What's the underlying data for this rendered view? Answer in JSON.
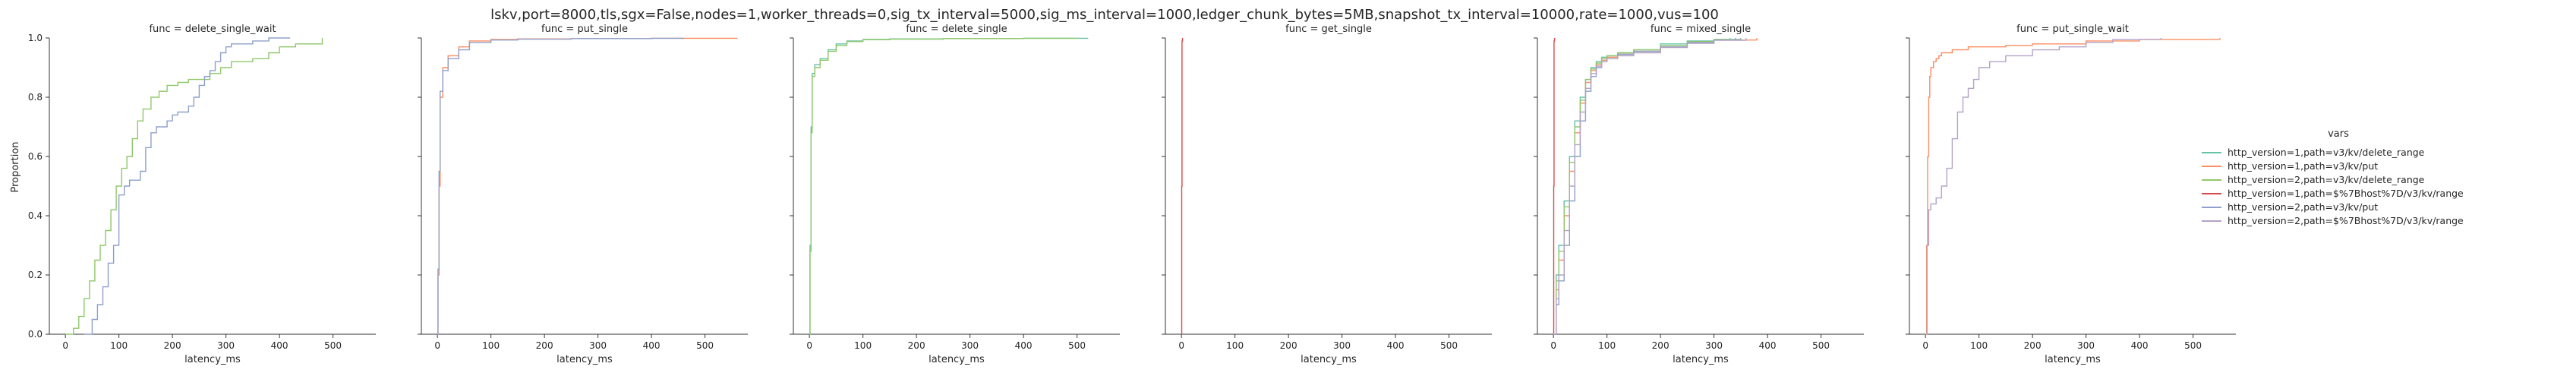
{
  "chart_data": {
    "type": "line",
    "title": "lskv,port=8000,tls,sgx=False,nodes=1,worker_threads=0,sig_tx_interval=5000,sig_ms_interval=1000,ledger_chunk_bytes=5MB,snapshot_tx_interval=10000,rate=1000,vus=100",
    "ylabel": "Proportion",
    "xlabel": "latency_ms",
    "ylim": [
      0,
      1.0
    ],
    "xlim": [
      -30,
      580
    ],
    "y_ticks": [
      "0.0",
      "0.2",
      "0.4",
      "0.6",
      "0.8",
      "1.0"
    ],
    "x_ticks": [
      "0",
      "100",
      "200",
      "300",
      "400",
      "500"
    ],
    "grid": false,
    "legend": {
      "title": "vars",
      "placement": "right",
      "entries": [
        {
          "label": "http_version=1,path=v3/kv/delete_range",
          "color": "#66c2a5"
        },
        {
          "label": "http_version=1,path=v3/kv/put",
          "color": "#fc8d62"
        },
        {
          "label": "http_version=2,path=v3/kv/delete_range",
          "color": "#8fc86a"
        },
        {
          "label": "http_version=1,path=$%7Bhost%7D/v3/kv/range",
          "color": "#d84b4b"
        },
        {
          "label": "http_version=2,path=v3/kv/put",
          "color": "#8da0cb"
        },
        {
          "label": "http_version=2,path=$%7Bhost%7D/v3/kv/range",
          "color": "#b3a3c7"
        }
      ]
    },
    "panels": [
      {
        "title": "func = delete_single_wait",
        "series": [
          {
            "color": "#8fc86a",
            "x": [
              0,
              15,
              25,
              35,
              45,
              55,
              65,
              75,
              85,
              95,
              105,
              115,
              125,
              135,
              145,
              160,
              175,
              190,
              210,
              230,
              250,
              270,
              290,
              310,
              330,
              350,
              380,
              400,
              430,
              480
            ],
            "y": [
              0,
              0.02,
              0.06,
              0.12,
              0.18,
              0.25,
              0.3,
              0.35,
              0.42,
              0.5,
              0.56,
              0.6,
              0.66,
              0.72,
              0.76,
              0.8,
              0.82,
              0.84,
              0.85,
              0.86,
              0.86,
              0.88,
              0.9,
              0.92,
              0.92,
              0.93,
              0.95,
              0.97,
              0.98,
              1.0
            ]
          },
          {
            "color": "#8da0cb",
            "x": [
              35,
              50,
              60,
              70,
              80,
              90,
              100,
              110,
              120,
              140,
              150,
              160,
              170,
              190,
              200,
              210,
              230,
              240,
              250,
              260,
              270,
              280,
              290,
              300,
              310,
              330,
              350,
              380,
              400,
              420
            ],
            "y": [
              0,
              0.05,
              0.1,
              0.16,
              0.24,
              0.3,
              0.47,
              0.5,
              0.52,
              0.55,
              0.63,
              0.68,
              0.7,
              0.72,
              0.74,
              0.75,
              0.77,
              0.8,
              0.84,
              0.87,
              0.89,
              0.92,
              0.95,
              0.97,
              0.98,
              0.98,
              0.99,
              1.0,
              1.0,
              1.0
            ]
          }
        ]
      },
      {
        "title": "func = put_single",
        "series": [
          {
            "color": "#fc8d62",
            "x": [
              0,
              1,
              3,
              5,
              10,
              20,
              40,
              60,
              100,
              150,
              250,
              400,
              560
            ],
            "y": [
              0,
              0.2,
              0.5,
              0.8,
              0.9,
              0.94,
              0.97,
              0.99,
              0.995,
              0.997,
              0.998,
              0.999,
              1.0
            ]
          },
          {
            "color": "#8da0cb",
            "x": [
              0,
              1,
              3,
              5,
              10,
              20,
              40,
              60,
              100,
              150,
              250,
              400,
              460
            ],
            "y": [
              0,
              0.22,
              0.55,
              0.82,
              0.89,
              0.93,
              0.96,
              0.985,
              0.993,
              0.996,
              0.998,
              0.999,
              1.0
            ]
          }
        ]
      },
      {
        "title": "func = delete_single",
        "series": [
          {
            "color": "#66c2a5",
            "x": [
              0,
              1,
              3,
              5,
              10,
              20,
              35,
              50,
              70,
              100,
              150,
              250,
              400,
              520
            ],
            "y": [
              0,
              0.3,
              0.7,
              0.88,
              0.91,
              0.93,
              0.96,
              0.98,
              0.99,
              0.995,
              0.997,
              0.998,
              0.999,
              1.0
            ]
          },
          {
            "color": "#8fc86a",
            "x": [
              0,
              1,
              3,
              5,
              10,
              20,
              35,
              50,
              70,
              100,
              150,
              250,
              400,
              500
            ],
            "y": [
              0,
              0.28,
              0.68,
              0.87,
              0.9,
              0.925,
              0.955,
              0.975,
              0.988,
              0.994,
              0.996,
              0.998,
              0.999,
              1.0
            ]
          }
        ]
      },
      {
        "title": "func = get_single",
        "series": [
          {
            "color": "#d84b4b",
            "x": [
              0,
              0.5,
              1,
              2
            ],
            "y": [
              0,
              0.5,
              0.99,
              1.0
            ]
          }
        ]
      },
      {
        "title": "func = mixed_single",
        "series": [
          {
            "color": "#d84b4b",
            "x": [
              0,
              0.5,
              1,
              2
            ],
            "y": [
              0,
              0.5,
              0.99,
              1.0
            ]
          },
          {
            "color": "#66c2a5",
            "x": [
              0,
              5,
              10,
              20,
              30,
              40,
              50,
              60,
              70,
              80,
              90,
              100,
              120,
              150,
              200,
              250,
              300,
              350
            ],
            "y": [
              0,
              0.2,
              0.3,
              0.45,
              0.6,
              0.72,
              0.8,
              0.86,
              0.9,
              0.92,
              0.935,
              0.94,
              0.95,
              0.96,
              0.98,
              0.99,
              0.995,
              1.0
            ]
          },
          {
            "color": "#fc8d62",
            "x": [
              0,
              5,
              10,
              20,
              30,
              40,
              50,
              60,
              70,
              80,
              90,
              100,
              120,
              150,
              200,
              250,
              300,
              380
            ],
            "y": [
              0,
              0.15,
              0.25,
              0.4,
              0.55,
              0.68,
              0.78,
              0.85,
              0.89,
              0.91,
              0.925,
              0.935,
              0.945,
              0.955,
              0.97,
              0.985,
              0.993,
              1.0
            ]
          },
          {
            "color": "#8fc86a",
            "x": [
              0,
              5,
              10,
              20,
              30,
              40,
              50,
              60,
              70,
              80,
              90,
              100,
              120,
              150,
              200,
              250,
              300,
              330
            ],
            "y": [
              0,
              0.18,
              0.28,
              0.43,
              0.58,
              0.7,
              0.79,
              0.86,
              0.895,
              0.915,
              0.93,
              0.94,
              0.95,
              0.96,
              0.975,
              0.988,
              0.995,
              1.0
            ]
          },
          {
            "color": "#8da0cb",
            "x": [
              0,
              5,
              10,
              20,
              30,
              40,
              50,
              60,
              70,
              80,
              90,
              100,
              120,
              150,
              200,
              250,
              300,
              340
            ],
            "y": [
              0,
              0.1,
              0.18,
              0.3,
              0.45,
              0.6,
              0.72,
              0.82,
              0.87,
              0.9,
              0.92,
              0.93,
              0.945,
              0.955,
              0.97,
              0.985,
              0.993,
              1.0
            ]
          },
          {
            "color": "#b3a3c7",
            "x": [
              0,
              5,
              10,
              20,
              30,
              40,
              50,
              60,
              70,
              80,
              90,
              100,
              120,
              150,
              200,
              250,
              300,
              360
            ],
            "y": [
              0,
              0.12,
              0.2,
              0.35,
              0.5,
              0.64,
              0.75,
              0.83,
              0.88,
              0.905,
              0.92,
              0.93,
              0.94,
              0.95,
              0.968,
              0.982,
              0.992,
              1.0
            ]
          }
        ]
      },
      {
        "title": "func = put_single_wait",
        "series": [
          {
            "color": "#fc8d62",
            "x": [
              0,
              2,
              4,
              6,
              8,
              10,
              15,
              20,
              25,
              30,
              40,
              50,
              60,
              80,
              100,
              150,
              200,
              300,
              400,
              550
            ],
            "y": [
              0,
              0.3,
              0.6,
              0.8,
              0.87,
              0.9,
              0.92,
              0.93,
              0.94,
              0.95,
              0.95,
              0.96,
              0.96,
              0.97,
              0.97,
              0.975,
              0.98,
              0.99,
              0.995,
              1.0
            ]
          },
          {
            "color": "#b3a3c7",
            "x": [
              0,
              3,
              6,
              10,
              20,
              30,
              40,
              50,
              60,
              70,
              80,
              90,
              100,
              120,
              150,
              200,
              250,
              300,
              350,
              440
            ],
            "y": [
              0,
              0.3,
              0.42,
              0.44,
              0.46,
              0.5,
              0.56,
              0.66,
              0.75,
              0.8,
              0.83,
              0.86,
              0.9,
              0.92,
              0.94,
              0.96,
              0.97,
              0.985,
              0.995,
              1.0
            ]
          }
        ]
      }
    ]
  }
}
